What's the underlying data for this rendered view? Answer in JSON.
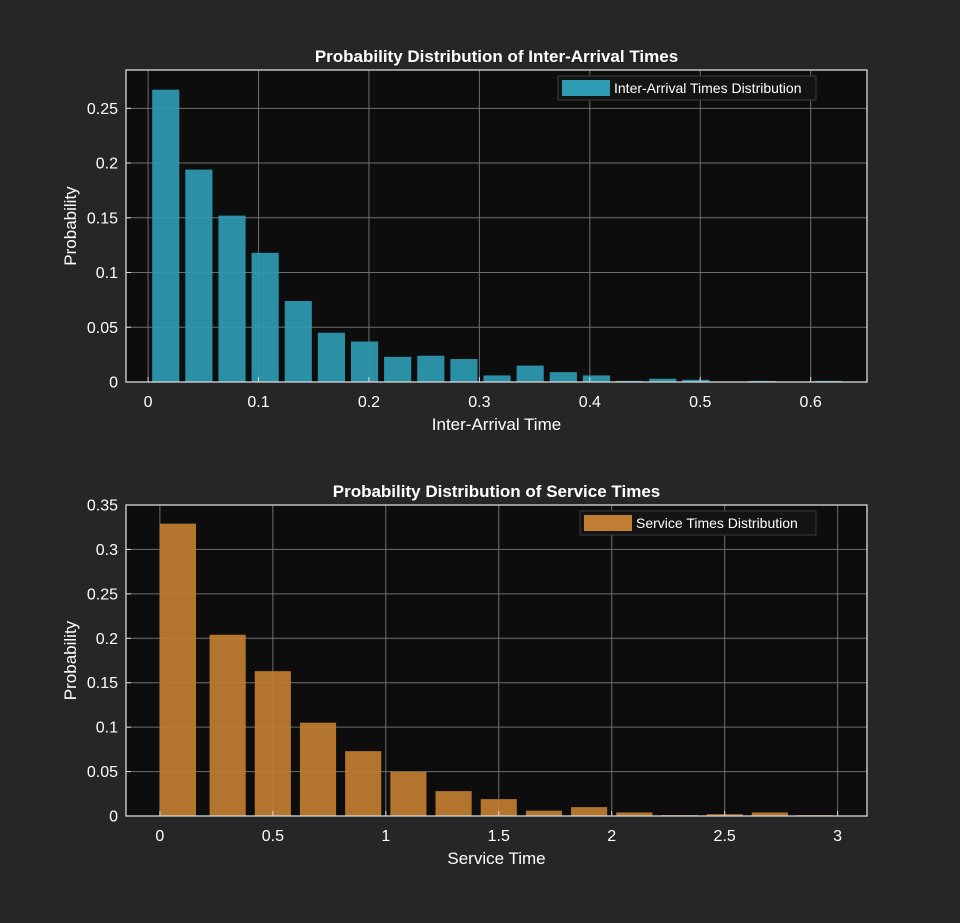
{
  "colors": {
    "figure_background": "#262626",
    "axes_background": "#0d0d0d",
    "axes_edge": "#d9d9d9",
    "grid": "#6e6e6e",
    "text": "#ffffff",
    "series_top": "#2e9ab3",
    "series_bottom": "#c17d31"
  },
  "chart_data": [
    {
      "type": "bar",
      "title": "Probability Distribution of Inter-Arrival Times",
      "xlabel": "Inter-Arrival Time",
      "ylabel": "Probability",
      "xlim": [
        -0.02,
        0.651
      ],
      "ylim": [
        0,
        0.285
      ],
      "xticks": [
        0,
        0.1,
        0.2,
        0.3,
        0.4,
        0.5,
        0.6
      ],
      "xtick_labels": [
        "0",
        "0.1",
        "0.2",
        "0.3",
        "0.4",
        "0.5",
        "0.6"
      ],
      "yticks": [
        0,
        0.05,
        0.1,
        0.15,
        0.2,
        0.25
      ],
      "ytick_labels": [
        "0",
        "0.05",
        "0.1",
        "0.15",
        "0.2",
        "0.25"
      ],
      "grid": true,
      "legend_position": "top-right",
      "bin_width": 0.03,
      "x": [
        0.016,
        0.046,
        0.076,
        0.106,
        0.136,
        0.166,
        0.196,
        0.226,
        0.256,
        0.286,
        0.316,
        0.346,
        0.376,
        0.406,
        0.436,
        0.466,
        0.496,
        0.526,
        0.556,
        0.586,
        0.616
      ],
      "series": [
        {
          "name": "Inter-Arrival Times Distribution",
          "values": [
            0.267,
            0.194,
            0.152,
            0.118,
            0.074,
            0.045,
            0.037,
            0.023,
            0.024,
            0.021,
            0.006,
            0.015,
            0.009,
            0.006,
            0.001,
            0.003,
            0.002,
            0.0005,
            0.001,
            0.0005,
            0.001
          ]
        }
      ]
    },
    {
      "type": "bar",
      "title": "Probability Distribution of Service Times",
      "xlabel": "Service Time",
      "ylabel": "Probability",
      "xlim": [
        -0.15,
        3.13
      ],
      "ylim": [
        0,
        0.35
      ],
      "xticks": [
        0,
        0.5,
        1,
        1.5,
        2,
        2.5,
        3
      ],
      "xtick_labels": [
        "0",
        "0.5",
        "1",
        "1.5",
        "2",
        "2.5",
        "3"
      ],
      "yticks": [
        0,
        0.05,
        0.1,
        0.15,
        0.2,
        0.25,
        0.3,
        0.35
      ],
      "ytick_labels": [
        "0",
        "0.05",
        "0.1",
        "0.15",
        "0.2",
        "0.25",
        "0.3",
        "0.35"
      ],
      "grid": true,
      "legend_position": "top-right",
      "bin_width": 0.2,
      "x": [
        0.08,
        0.3,
        0.5,
        0.7,
        0.9,
        1.1,
        1.3,
        1.5,
        1.7,
        1.9,
        2.1,
        2.3,
        2.5,
        2.7,
        2.9
      ],
      "series": [
        {
          "name": "Service Times Distribution",
          "values": [
            0.329,
            0.204,
            0.163,
            0.105,
            0.073,
            0.05,
            0.028,
            0.019,
            0.006,
            0.01,
            0.004,
            0.001,
            0.002,
            0.004,
            0.001
          ]
        }
      ]
    }
  ]
}
